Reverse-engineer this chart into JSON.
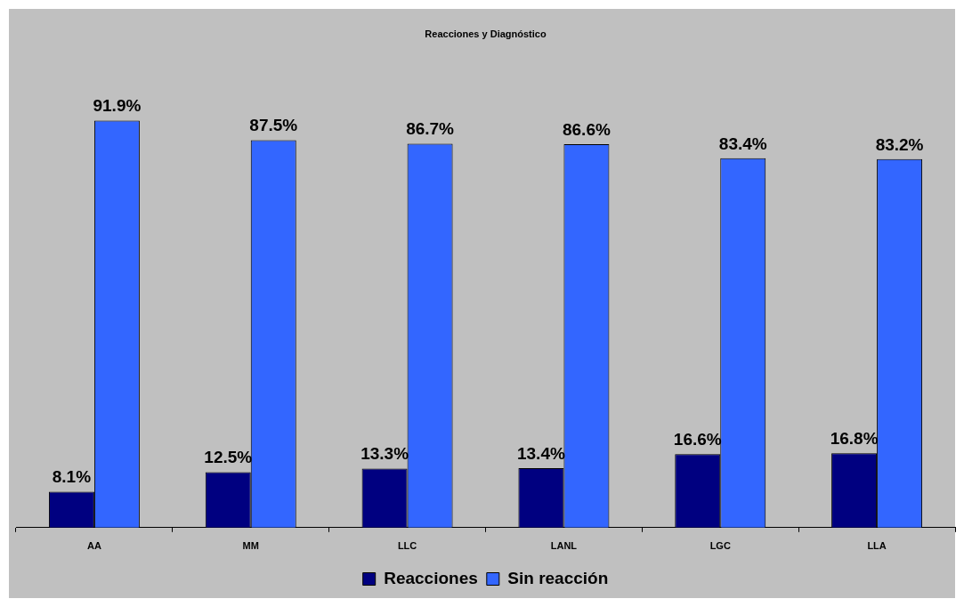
{
  "chart_data": {
    "type": "bar",
    "title": "Reacciones y Diagnóstico",
    "categories": [
      "AA",
      "MM",
      "LLC",
      "LANL",
      "LGC",
      "LLA"
    ],
    "series": [
      {
        "name": "Reacciones",
        "color": "#000080",
        "values": [
          8.1,
          12.5,
          13.3,
          13.4,
          16.6,
          16.8
        ],
        "value_labels": [
          "8.1%",
          "12.5%",
          "13.3%",
          "13.4%",
          "16.6%",
          "16.8%"
        ]
      },
      {
        "name": "Sin reacción",
        "color": "#3366ff",
        "values": [
          91.9,
          87.5,
          86.7,
          86.6,
          83.4,
          83.2
        ],
        "value_labels": [
          "91.9%",
          "87.5%",
          "86.7%",
          "86.6%",
          "83.4%",
          "83.2%"
        ]
      }
    ],
    "legend": "bottom",
    "grid": false
  }
}
